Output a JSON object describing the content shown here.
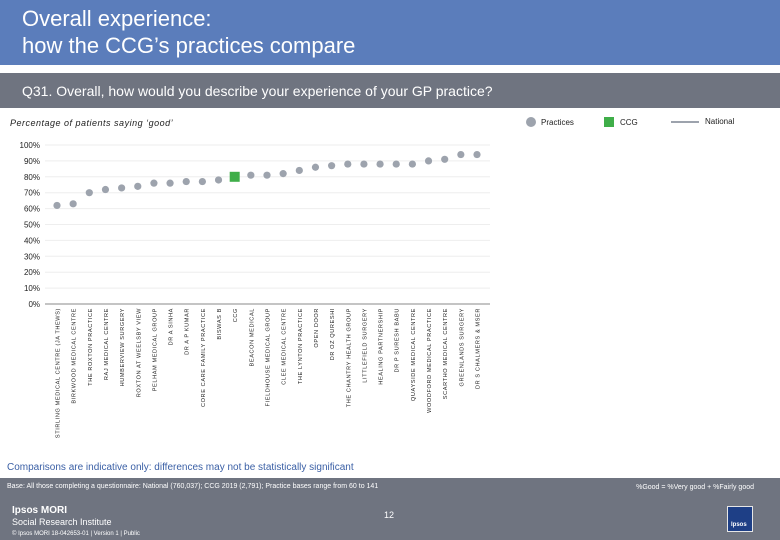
{
  "header": {
    "title_line1": "Overall experience:",
    "title_line2": "how the CCG’s practices compare"
  },
  "question": "Q31. Overall, how would you describe your experience of your GP practice?",
  "subtitle": "Percentage of patients saying ‘good’",
  "colors": {
    "practice": "#9da3ad",
    "ccg": "#3fae49",
    "national": "#9da3ad",
    "header": "#5b7dbb",
    "band": "#6f7480"
  },
  "chart_data": {
    "type": "scatter",
    "title": "Percentage of patients saying ‘good’",
    "ylim": [
      0,
      100
    ],
    "yticks": [
      "0%",
      "10%",
      "20%",
      "30%",
      "40%",
      "50%",
      "60%",
      "70%",
      "80%",
      "90%",
      "100%"
    ],
    "legend": [
      "Practices",
      "CCG",
      "National"
    ],
    "legend_position": "top-right",
    "categories": [
      "STIRLING MEDICAL CENTRE (JA THEWS)",
      "BIRKWOOD MEDICAL CENTRE",
      "THE ROXTON PRACTICE",
      "RAJ MEDICAL CENTRE",
      "HUMBERVIEW SURGERY",
      "ROXTON AT WEELSBY VIEW",
      "PELHAM MEDICAL GROUP",
      "DR A SINHA",
      "DR A P KUMAR",
      "CORE CARE FAMILY PRACTICE",
      "BISWAS B",
      "CCG",
      "BEACON MEDICAL",
      "FIELDHOUSE MEDICAL GROUP",
      "CLEE MEDICAL CENTRE",
      "THE LYNTON PRACTICE",
      "OPEN DOOR",
      "DR OZ QURESHI",
      "THE CHANTRY HEALTH GROUP",
      "LITTLEFIELD SURGERY",
      "HEALING PARTNERSHIP",
      "DR P SURESH BABU",
      "QUAYSIDE MEDICAL CENTRE",
      "WOODFORD MEDICAL PRACTICE",
      "SCARTHO MEDICAL CENTRE",
      "GREENLANDS SURGERY",
      "DR S CHALMERS & MSER"
    ],
    "values": [
      62,
      63,
      70,
      72,
      73,
      74,
      76,
      76,
      77,
      77,
      78,
      80,
      81,
      81,
      82,
      84,
      86,
      87,
      88,
      88,
      88,
      88,
      88,
      90,
      91,
      94,
      94
    ],
    "kind": [
      "practice",
      "practice",
      "practice",
      "practice",
      "practice",
      "practice",
      "practice",
      "practice",
      "practice",
      "practice",
      "practice",
      "ccg",
      "practice",
      "practice",
      "practice",
      "practice",
      "practice",
      "practice",
      "practice",
      "practice",
      "practice",
      "practice",
      "practice",
      "practice",
      "practice",
      "practice",
      "practice"
    ]
  },
  "note": "Comparisons are indicative only: differences may not be statistically significant",
  "footer": {
    "base": "Base: All those completing a questionnaire: National (760,037); CCG 2019 (2,791); Practice bases range from 60 to 141",
    "definition": "%Good = %Very good + %Fairly good",
    "logo_line1": "Ipsos MORI",
    "logo_line2": "Social Research Institute",
    "copyright": "© Ipsos MORI     18-042653-01 | Version 1 | Public",
    "page": "12",
    "badge": "Ipsos"
  }
}
